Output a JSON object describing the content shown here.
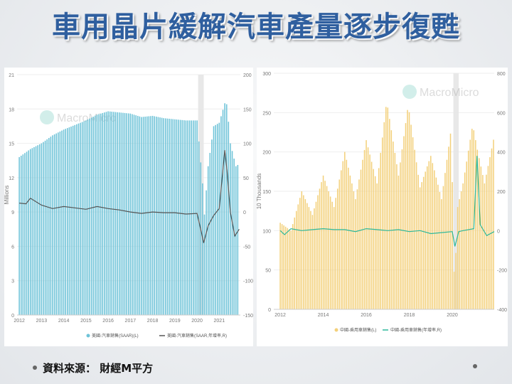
{
  "slide": {
    "title": "車用晶片緩解汽車產量逐步復甦",
    "source": "資料來源： 財經M平方"
  },
  "colors": {
    "title": "#2f5f9f",
    "us_bar": "#6ec3d8",
    "us_line": "#555555",
    "cn_bar": "#f3d07a",
    "cn_line": "#2eb89a"
  },
  "chart_data": [
    {
      "type": "bar",
      "watermark": "MacroMicro",
      "x_ticks": [
        "2012",
        "2013",
        "2014",
        "2015",
        "2016",
        "2017",
        "2018",
        "2019",
        "2020",
        "2021"
      ],
      "x_range": [
        2011.9,
        2021.95
      ],
      "left_axis": {
        "label": "Millions",
        "range": [
          0,
          21
        ],
        "ticks": [
          "0",
          "3",
          "6",
          "9",
          "12",
          "15",
          "18",
          "21"
        ]
      },
      "right_axis": {
        "range": [
          -150,
          200
        ],
        "ticks": [
          "-150",
          "-100",
          "-50",
          "0",
          "50",
          "100",
          "150",
          "200"
        ]
      },
      "bar_series": {
        "name": "美國-汽車銷售(SAAR)(L)",
        "x": [
          2012.0,
          2012.5,
          2013.0,
          2013.5,
          2014.0,
          2014.5,
          2015.0,
          2015.5,
          2016.0,
          2016.5,
          2017.0,
          2017.5,
          2018.0,
          2018.5,
          2019.0,
          2019.5,
          2020.0,
          2020.25,
          2020.33,
          2020.5,
          2020.75,
          2021.0,
          2021.25,
          2021.35,
          2021.5,
          2021.75,
          2021.9
        ],
        "values": [
          13.8,
          14.5,
          15.0,
          15.7,
          16.2,
          16.6,
          17.0,
          17.5,
          17.8,
          17.7,
          17.6,
          17.3,
          17.4,
          17.2,
          17.1,
          17.0,
          17.0,
          11.5,
          8.7,
          13.0,
          16.5,
          16.8,
          18.5,
          18.4,
          15.0,
          13.0,
          13.2
        ]
      },
      "line_series": {
        "name": "美國-汽車銷售(SAAR,年增率,R)",
        "x": [
          2012.0,
          2012.3,
          2012.5,
          2013.0,
          2013.5,
          2014.0,
          2014.5,
          2015.0,
          2015.5,
          2016.0,
          2016.5,
          2017.0,
          2017.5,
          2018.0,
          2018.5,
          2019.0,
          2019.5,
          2020.0,
          2020.2,
          2020.3,
          2020.5,
          2020.75,
          2021.0,
          2021.25,
          2021.35,
          2021.5,
          2021.7,
          2021.9
        ],
        "values": [
          13,
          12,
          20,
          10,
          5,
          8,
          6,
          4,
          8,
          5,
          3,
          0,
          -2,
          0,
          -1,
          -1,
          -3,
          -2,
          -30,
          -45,
          -20,
          -5,
          5,
          90,
          60,
          0,
          -35,
          -25
        ]
      }
    },
    {
      "type": "bar",
      "watermark": "MacroMicro",
      "x_ticks": [
        "2012",
        "2014",
        "2016",
        "2018",
        "2020"
      ],
      "x_range": [
        2011.7,
        2021.95
      ],
      "left_axis": {
        "label": "10 Thousands",
        "range": [
          0,
          300
        ],
        "ticks": [
          "0",
          "50",
          "100",
          "150",
          "200",
          "250",
          "300"
        ]
      },
      "right_axis": {
        "range": [
          -400,
          800
        ],
        "ticks": [
          "-400",
          "-200",
          "0",
          "200",
          "400",
          "600",
          "800"
        ]
      },
      "bar_series": {
        "name": "中國-乘用車銷售(L)",
        "x": [
          2012.0,
          2012.5,
          2013.0,
          2013.5,
          2014.0,
          2014.5,
          2015.0,
          2015.5,
          2016.0,
          2016.5,
          2016.95,
          2017.5,
          2017.95,
          2018.5,
          2019.0,
          2019.5,
          2019.95,
          2020.1,
          2020.25,
          2020.5,
          2020.95,
          2021.15,
          2021.5,
          2021.95
        ],
        "values": [
          110,
          100,
          150,
          120,
          170,
          130,
          200,
          140,
          215,
          160,
          265,
          170,
          260,
          155,
          195,
          140,
          230,
          25,
          130,
          160,
          235,
          205,
          160,
          220
        ]
      },
      "line_series": {
        "name": "中國-乘用車銷售(年增率,R)",
        "x": [
          2012.0,
          2012.2,
          2012.5,
          2013.0,
          2013.5,
          2014.0,
          2014.5,
          2015.0,
          2015.5,
          2016.0,
          2016.5,
          2017.0,
          2017.5,
          2018.0,
          2018.5,
          2019.0,
          2019.5,
          2020.0,
          2020.12,
          2020.3,
          2020.5,
          2021.0,
          2021.15,
          2021.3,
          2021.6,
          2021.95
        ],
        "values": [
          0,
          -20,
          10,
          0,
          5,
          10,
          5,
          5,
          -5,
          10,
          5,
          0,
          5,
          -5,
          0,
          -15,
          -10,
          -5,
          -80,
          -5,
          0,
          10,
          380,
          30,
          -25,
          -5
        ]
      }
    }
  ]
}
